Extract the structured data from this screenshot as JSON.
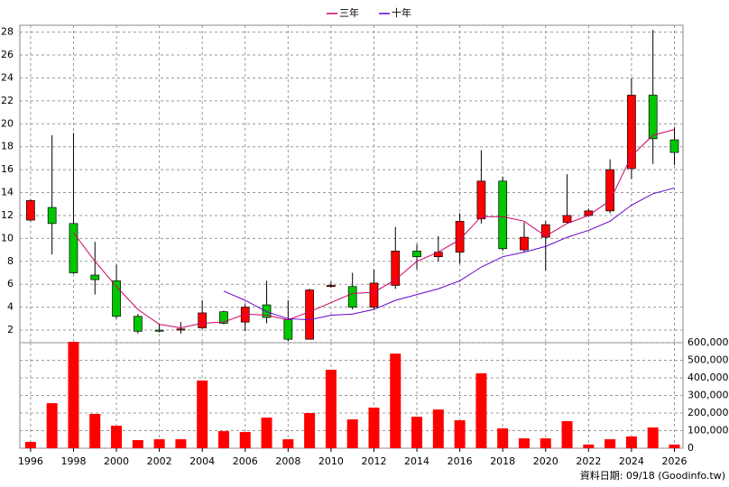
{
  "chart_data": [
    {
      "type": "candlestick",
      "x": [
        1996,
        1997,
        1998,
        1999,
        2000,
        2001,
        2002,
        2003,
        2004,
        2005,
        2006,
        2007,
        2008,
        2009,
        2010,
        2011,
        2012,
        2013,
        2014,
        2015,
        2016,
        2017,
        2018,
        2019,
        2020,
        2021,
        2022,
        2023,
        2024,
        2025,
        2026
      ],
      "open": [
        11.6,
        12.7,
        11.3,
        6.8,
        6.3,
        3.2,
        2.0,
        2.0,
        2.2,
        3.6,
        2.7,
        4.2,
        2.9,
        1.2,
        5.8,
        5.8,
        4.0,
        5.9,
        8.9,
        8.4,
        8.8,
        11.7,
        15.0,
        9.0,
        10.1,
        11.4,
        12.0,
        12.4,
        16.1,
        22.5,
        18.6
      ],
      "high": [
        13.4,
        19.0,
        19.2,
        9.7,
        7.7,
        3.4,
        2.5,
        2.7,
        4.6,
        3.7,
        4.3,
        6.3,
        4.6,
        5.6,
        6.2,
        7.0,
        7.3,
        11.0,
        9.5,
        10.2,
        12.2,
        17.7,
        15.4,
        11.4,
        11.5,
        15.6,
        12.6,
        16.9,
        24.0,
        28.2,
        19.7
      ],
      "low": [
        11.5,
        8.6,
        6.9,
        5.1,
        3.0,
        1.7,
        1.8,
        1.7,
        2.1,
        2.5,
        1.9,
        2.6,
        1.05,
        1.2,
        5.7,
        3.8,
        3.8,
        5.6,
        7.3,
        8.0,
        7.8,
        11.3,
        8.9,
        8.8,
        7.2,
        11.3,
        11.9,
        12.2,
        15.2,
        16.5,
        16.4
      ],
      "close": [
        13.3,
        11.3,
        7.0,
        6.4,
        3.2,
        1.9,
        1.9,
        2.1,
        3.5,
        2.6,
        4.0,
        3.1,
        1.2,
        5.5,
        5.9,
        4.0,
        6.1,
        8.9,
        8.4,
        8.8,
        11.5,
        15.0,
        9.1,
        10.1,
        11.2,
        12.0,
        12.4,
        16.0,
        22.5,
        18.7,
        17.5
      ],
      "up_color": "#ff0000",
      "down_color": "#00c800",
      "series": [
        {
          "name": "三年",
          "color": "#cc0066",
          "values": [
            null,
            null,
            10.5,
            8.0,
            5.8,
            3.8,
            2.5,
            2.2,
            2.6,
            2.7,
            3.4,
            3.3,
            2.9,
            3.6,
            4.4,
            5.2,
            5.3,
            6.4,
            8.0,
            8.8,
            9.9,
            11.9,
            11.9,
            11.5,
            10.2,
            11.3,
            12.0,
            13.3,
            17.2,
            19.0,
            19.5
          ]
        },
        {
          "name": "十年",
          "color": "#6600cc",
          "values": [
            null,
            null,
            null,
            null,
            null,
            null,
            null,
            null,
            null,
            5.4,
            4.6,
            3.6,
            3.0,
            2.9,
            3.3,
            3.4,
            3.8,
            4.6,
            5.1,
            5.6,
            6.3,
            7.5,
            8.4,
            8.8,
            9.3,
            10.1,
            10.7,
            11.5,
            12.9,
            13.9,
            14.4
          ]
        }
      ],
      "xlim": [
        1995.5,
        2026.4
      ],
      "xticks": [
        1996,
        1998,
        2000,
        2002,
        2004,
        2006,
        2008,
        2010,
        2012,
        2014,
        2016,
        2018,
        2020,
        2022,
        2024,
        2026
      ],
      "ylim": [
        0.9,
        28.6
      ],
      "yticks": [
        2,
        4,
        6,
        8,
        10,
        12,
        14,
        16,
        18,
        20,
        22,
        24,
        26,
        28
      ],
      "grid": true,
      "legend": "top"
    },
    {
      "type": "bar",
      "x": [
        1996,
        1997,
        1998,
        1999,
        2000,
        2001,
        2002,
        2003,
        2004,
        2005,
        2006,
        2007,
        2008,
        2009,
        2010,
        2011,
        2012,
        2013,
        2014,
        2015,
        2016,
        2017,
        2018,
        2019,
        2020,
        2021,
        2022,
        2023,
        2024,
        2025,
        2026
      ],
      "values": [
        36000,
        256000,
        605000,
        195000,
        128000,
        46000,
        51000,
        51000,
        385000,
        97000,
        92000,
        174000,
        51000,
        200000,
        446000,
        164000,
        231000,
        538000,
        179000,
        220000,
        159000,
        426000,
        113000,
        56000,
        56000,
        154000,
        21000,
        51000,
        67000,
        118000,
        21000
      ],
      "color": "#ff0000",
      "xlim": [
        1995.5,
        2026.4
      ],
      "xticks": [
        1996,
        1998,
        2000,
        2002,
        2004,
        2006,
        2008,
        2010,
        2012,
        2014,
        2016,
        2018,
        2020,
        2022,
        2024,
        2026
      ],
      "y2lim": [
        0,
        600000
      ],
      "y2ticks": [
        0,
        {
          "value": 100000,
          "label": "100,000"
        },
        {
          "value": 200000,
          "label": "200,000"
        },
        {
          "value": 300000,
          "label": "300,000"
        },
        {
          "value": 400000,
          "label": "400,000"
        },
        {
          "value": 500000,
          "label": "500,000"
        },
        {
          "value": 600000,
          "label": "600,000"
        }
      ],
      "grid": true
    }
  ],
  "source": "資料日期: 09/18 (Goodinfo.tw)"
}
